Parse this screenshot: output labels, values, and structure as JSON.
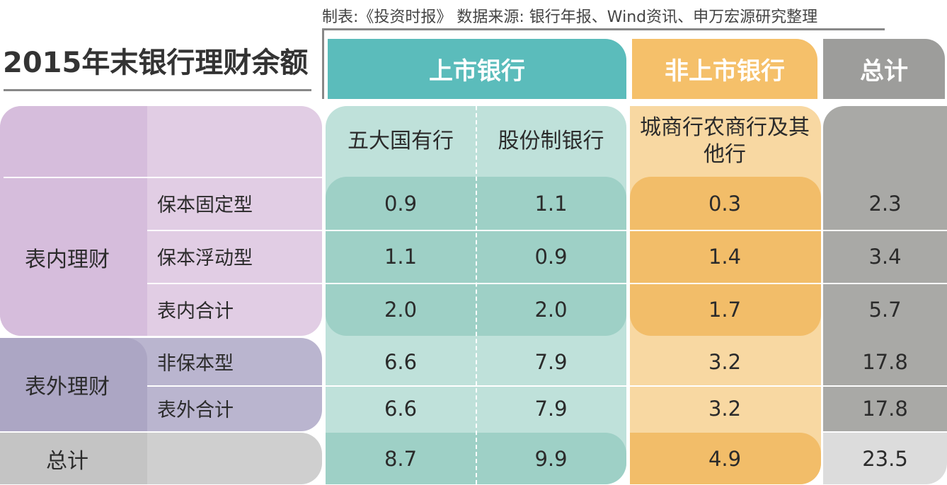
{
  "title": "2015年末银行理财余额",
  "source": "制表:《投资时报》 数据来源: 银行年报、Wind资讯、申万宏源研究整理",
  "groups": [
    "上市银行",
    "非上市银行",
    "总计"
  ],
  "columns": [
    "五大国有行",
    "股份制银行",
    "城商行农商行及其他行"
  ],
  "sections": [
    {
      "label": "表内理财",
      "rows": [
        {
          "label": "保本固定型",
          "values": [
            "0.9",
            "1.1",
            "0.3",
            "2.3"
          ]
        },
        {
          "label": "保本浮动型",
          "values": [
            "1.1",
            "0.9",
            "1.4",
            "3.4"
          ]
        },
        {
          "label": "表内合计",
          "values": [
            "2.0",
            "2.0",
            "1.7",
            "5.7"
          ]
        }
      ]
    },
    {
      "label": "表外理财",
      "rows": [
        {
          "label": "非保本型",
          "values": [
            "6.6",
            "7.9",
            "3.2",
            "17.8"
          ]
        },
        {
          "label": "表外合计",
          "values": [
            "6.6",
            "7.9",
            "3.2",
            "17.8"
          ]
        }
      ]
    }
  ],
  "total": {
    "label": "总计",
    "values": [
      "8.7",
      "9.9",
      "4.9",
      "23.5"
    ]
  }
}
